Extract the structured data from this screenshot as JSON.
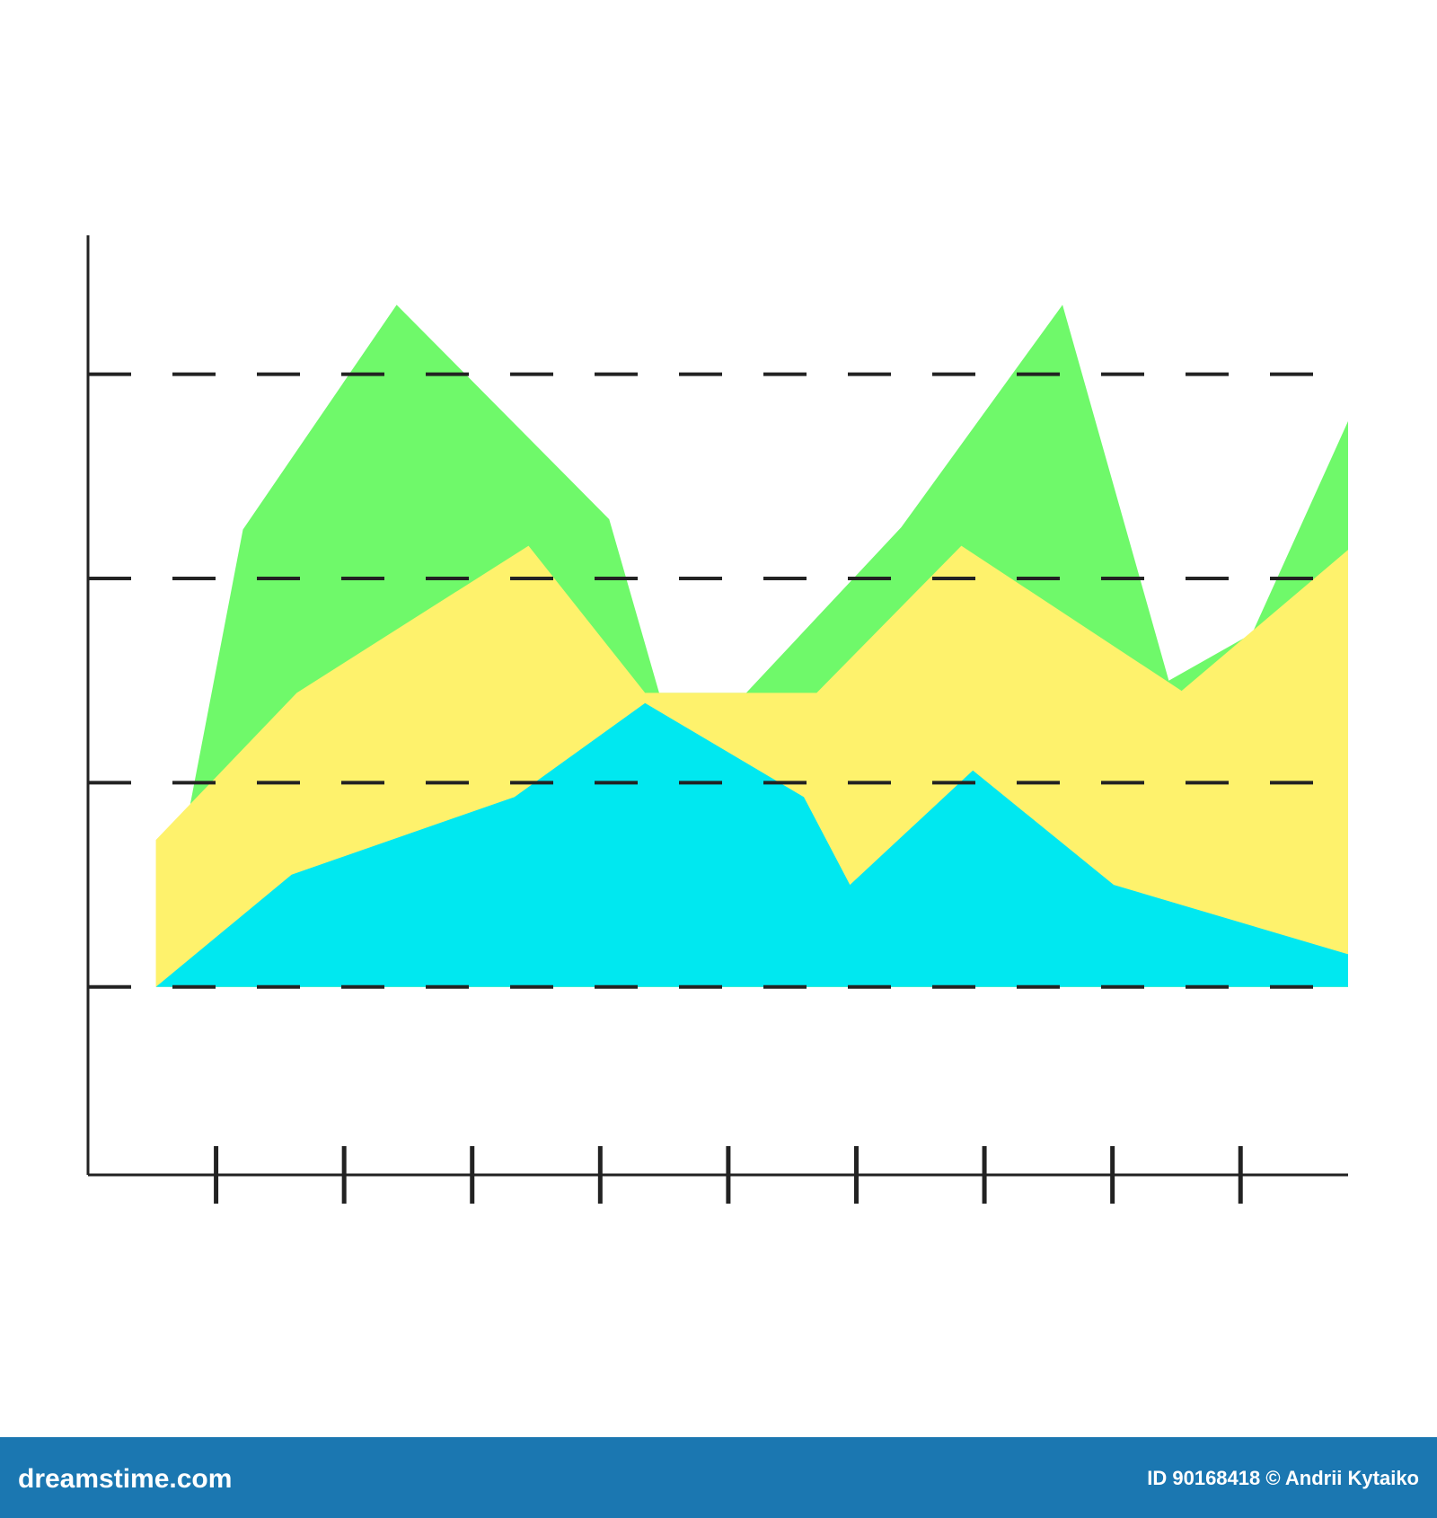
{
  "chart_data": {
    "type": "area",
    "xlim": [
      0,
      9.84
    ],
    "xticks": [
      1,
      2,
      3,
      4,
      5,
      6,
      7,
      8,
      9
    ],
    "ylim": [
      -0.92,
      3.68
    ],
    "yticks": [
      0,
      1,
      2,
      3
    ],
    "grid": true,
    "series": [
      {
        "color": "#6ff96a",
        "x": [
          0.8,
          1.21,
          2.41,
          4.07,
          4.46,
          5.14,
          6.35,
          7.61,
          8.44,
          9.09,
          9.84
        ],
        "values": [
          0.9,
          2.24,
          3.34,
          2.29,
          1.44,
          1.44,
          2.25,
          3.34,
          1.5,
          1.73,
          2.77
        ]
      },
      {
        "color": "#fef26c",
        "x": [
          0.53,
          1.63,
          3.44,
          4.35,
          5.69,
          6.82,
          8.54,
          9.84
        ],
        "values": [
          0.72,
          1.44,
          2.16,
          1.44,
          1.44,
          2.16,
          1.45,
          2.14
        ]
      },
      {
        "color": "#00e8f0",
        "x": [
          0.53,
          1.59,
          3.33,
          4.35,
          5.59,
          5.95,
          6.91,
          8.01,
          9.84
        ],
        "values": [
          0,
          0.55,
          0.93,
          1.39,
          0.93,
          0.5,
          1.06,
          0.5,
          0.16
        ]
      }
    ]
  },
  "footer": {
    "brand": "dreamstime.com",
    "credit": "ID 90168418 © Andrii Kytaiko"
  }
}
